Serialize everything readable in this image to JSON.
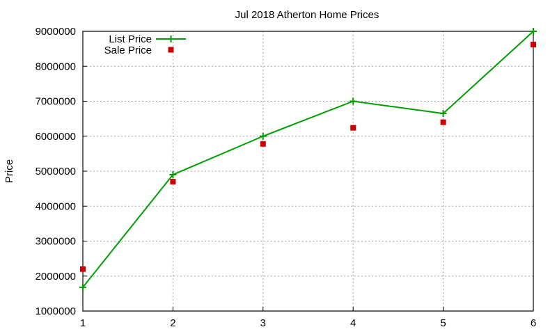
{
  "chart_data": {
    "type": "line",
    "title": "Jul 2018 Atherton Home Prices",
    "xlabel": "",
    "ylabel": "Price",
    "x": [
      1,
      2,
      3,
      4,
      5,
      6
    ],
    "xticks": [
      "1",
      "2",
      "3",
      "4",
      "5",
      "6"
    ],
    "xlim": [
      1,
      6
    ],
    "ylim": [
      1000000,
      9000000
    ],
    "yticks": [
      "1000000",
      "2000000",
      "3000000",
      "4000000",
      "5000000",
      "6000000",
      "7000000",
      "8000000",
      "9000000"
    ],
    "grid": true,
    "legend_position": "top-left",
    "series": [
      {
        "name": "List Price",
        "style": "linespoints",
        "marker": "plus",
        "color": "#009e00",
        "values": [
          1680000,
          4900000,
          6000000,
          7000000,
          6650000,
          9000000
        ]
      },
      {
        "name": "Sale Price",
        "style": "points",
        "marker": "square",
        "color": "#cc0000",
        "values": [
          2200000,
          4700000,
          5780000,
          6240000,
          6400000,
          8620000
        ]
      }
    ]
  }
}
